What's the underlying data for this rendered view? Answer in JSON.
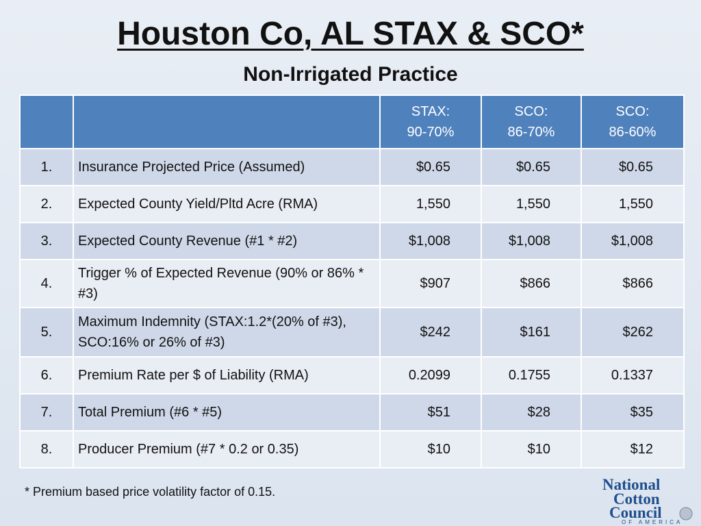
{
  "title": "Houston Co, AL STAX & SCO*",
  "subtitle": "Non-Irrigated Practice",
  "table": {
    "headers": [
      {
        "line1": "STAX:",
        "line2": "90-70%"
      },
      {
        "line1": "SCO:",
        "line2": "86-70%"
      },
      {
        "line1": "SCO:",
        "line2": "86-60%"
      }
    ],
    "rows": [
      {
        "num": "1.",
        "label": "Insurance Projected Price (Assumed)",
        "values": [
          "$0.65",
          "$0.65",
          "$0.65"
        ]
      },
      {
        "num": "2.",
        "label": "Expected County Yield/Pltd Acre (RMA)",
        "values": [
          "1,550",
          "1,550",
          "1,550"
        ]
      },
      {
        "num": "3.",
        "label": "Expected County Revenue (#1 * #2)",
        "values": [
          "$1,008",
          "$1,008",
          "$1,008"
        ]
      },
      {
        "num": "4.",
        "label": "Trigger % of Expected Revenue (90% or 86% * #3)",
        "values": [
          "$907",
          "$866",
          "$866"
        ]
      },
      {
        "num": "5.",
        "label": "Maximum Indemnity (STAX:1.2*(20% of #3), SCO:16% or 26% of #3)",
        "values": [
          "$242",
          "$161",
          "$262"
        ]
      },
      {
        "num": "6.",
        "label": "Premium Rate per $ of Liability (RMA)",
        "values": [
          "0.2099",
          "0.1755",
          "0.1337"
        ]
      },
      {
        "num": "7.",
        "label": "Total Premium (#6 * #5)",
        "values": [
          "$51",
          "$28",
          "$35"
        ]
      },
      {
        "num": "8.",
        "label": "Producer Premium (#7 * 0.2 or 0.35)",
        "values": [
          "$10",
          "$10",
          "$12"
        ]
      }
    ]
  },
  "footnote": "* Premium based price volatility factor of 0.15.",
  "logo": {
    "line1": "National",
    "line2": "Cotton",
    "line3": "Council",
    "line4": "OF AMERICA"
  }
}
